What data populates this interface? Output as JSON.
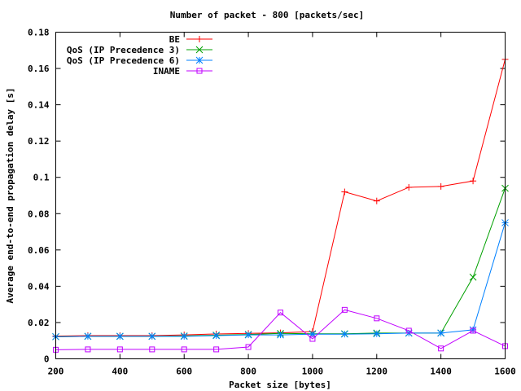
{
  "chart_data": {
    "type": "line",
    "title": "Number of packet - 800 [packets/sec]",
    "xlabel": "Packet size [bytes]",
    "ylabel": "Average end-to-end propagation delay [s]",
    "xlim": [
      200,
      1600
    ],
    "ylim": [
      0,
      0.18
    ],
    "x_ticks": [
      200,
      400,
      600,
      800,
      1000,
      1200,
      1400,
      1600
    ],
    "y_ticks": [
      0,
      0.02,
      0.04,
      0.06,
      0.08,
      0.1,
      0.12,
      0.14,
      0.16,
      0.18
    ],
    "y_tick_labels": [
      "0",
      "0.02",
      "0.04",
      "0.06",
      "0.08",
      "0.1",
      "0.12",
      "0.14",
      "0.16",
      "0.18"
    ],
    "legend_position": "top-left",
    "grid": false,
    "x": [
      200,
      300,
      400,
      500,
      600,
      700,
      800,
      900,
      1000,
      1100,
      1200,
      1300,
      1400,
      1500,
      1600
    ],
    "series": [
      {
        "name": "BE",
        "color": "#ff0000",
        "marker": "plus",
        "values": [
          0.0125,
          0.0128,
          0.0128,
          0.0128,
          0.0132,
          0.0137,
          0.014,
          0.0143,
          0.015,
          0.092,
          0.087,
          0.0945,
          0.095,
          0.098,
          0.165
        ]
      },
      {
        "name": "QoS (IP Precedence 3)",
        "color": "#00a000",
        "marker": "cross",
        "values": [
          0.0122,
          0.0124,
          0.0124,
          0.0124,
          0.0126,
          0.013,
          0.0134,
          0.014,
          0.0138,
          0.0138,
          0.0142,
          0.0142,
          0.0142,
          0.045,
          0.094
        ]
      },
      {
        "name": "QoS (IP Precedence 6)",
        "color": "#0080ff",
        "marker": "star",
        "values": [
          0.0122,
          0.0124,
          0.0124,
          0.0124,
          0.0124,
          0.0128,
          0.0132,
          0.0132,
          0.0136,
          0.0136,
          0.0138,
          0.0142,
          0.0142,
          0.016,
          0.075
        ]
      },
      {
        "name": "INAME",
        "color": "#c000ff",
        "marker": "square",
        "values": [
          0.005,
          0.0052,
          0.0052,
          0.0052,
          0.0052,
          0.0052,
          0.0065,
          0.0255,
          0.011,
          0.027,
          0.0223,
          0.0155,
          0.0057,
          0.0155,
          0.007
        ]
      }
    ]
  }
}
